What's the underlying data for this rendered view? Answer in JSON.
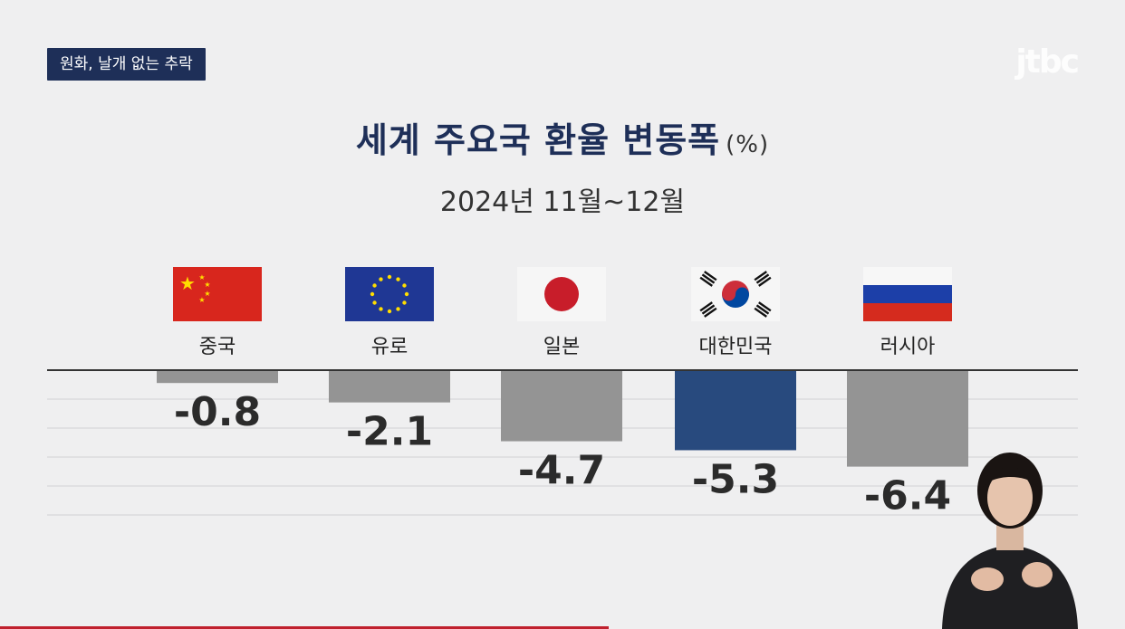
{
  "tag": "원화, 날개 없는 추락",
  "logo": "jtbc",
  "chart_data": {
    "type": "bar",
    "title": "세계 주요국 환율 변동폭",
    "unit": "(%)",
    "subtitle": "2024년 11월~12월",
    "categories": [
      "중국",
      "유로",
      "일본",
      "대한민국",
      "러시아"
    ],
    "values": [
      -0.8,
      -2.1,
      -4.7,
      -5.3,
      -6.4
    ],
    "value_labels": [
      "-0.8",
      "-2.1",
      "-4.7",
      "-5.3",
      "-6.4"
    ],
    "flags": [
      "china-flag",
      "eu-flag",
      "japan-flag",
      "korea-flag",
      "russia-flag"
    ],
    "colors": [
      "#949494",
      "#949494",
      "#949494",
      "#284a7e",
      "#949494"
    ],
    "ylim": [
      -8,
      0
    ],
    "grid": true
  }
}
